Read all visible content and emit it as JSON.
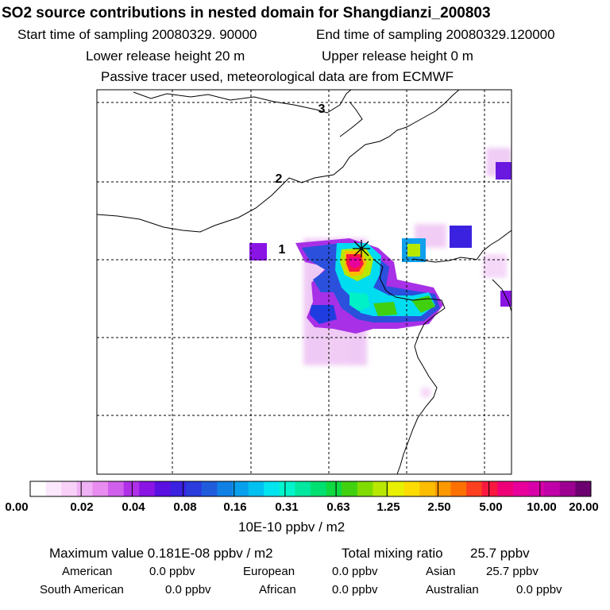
{
  "title": "SO2 source contributions in nested domain for Shangdianzi_200803",
  "header": {
    "start_label": "Start time of sampling 20080329. 90000",
    "end_label": "End time of sampling 20080329.120000",
    "lower_label": "Lower release height   20 m",
    "upper_label": "Upper release height    0 m",
    "tracer_label": "Passive tracer used, meteorological data are from ECMWF"
  },
  "map": {
    "lat_labels": [
      "3",
      "2",
      "1"
    ],
    "station_marker": "asterisk-icon"
  },
  "colorbar": {
    "ticks": [
      "0.00",
      "0.02",
      "0.04",
      "0.08",
      "0.16",
      "0.31",
      "0.63",
      "1.25",
      "2.50",
      "5.00",
      "10.00",
      "20.00"
    ],
    "colors": [
      "#ffffff",
      "#fce8fc",
      "#f8d0f8",
      "#f0b0f4",
      "#e88cf0",
      "#d060ec",
      "#b030e8",
      "#8a14e4",
      "#5a10e0",
      "#3a22e0",
      "#2a3cdc",
      "#1e5cdc",
      "#1080e4",
      "#08a0ec",
      "#02c0f0",
      "#00e4f0",
      "#00f4cc",
      "#00e8a0",
      "#00e070",
      "#10d840",
      "#40d010",
      "#80dc00",
      "#b8e800",
      "#e8f000",
      "#fcdc00",
      "#fcbc00",
      "#fc9800",
      "#fc7000",
      "#fc4020",
      "#f81840",
      "#f00078",
      "#e8009c",
      "#d800a8",
      "#c000a8",
      "#9c0090",
      "#6c0070"
    ],
    "unit": "10E-10 ppbv / m2"
  },
  "stats": {
    "max_label": "Maximum value  0.181E-08 ppbv / m2",
    "total_label": "Total mixing ratio",
    "total_value": "25.7 ppbv",
    "american_label": "American",
    "american_value": "0.0 ppbv",
    "european_label": "European",
    "european_value": "0.0 ppbv",
    "asian_label": "Asian",
    "asian_value": "25.7 ppbv",
    "south_american_label": "South American",
    "south_american_value": "0.0 ppbv",
    "african_label": "African",
    "african_value": "0.0 ppbv",
    "australian_label": "Australian",
    "australian_value": "0.0 ppbv"
  }
}
